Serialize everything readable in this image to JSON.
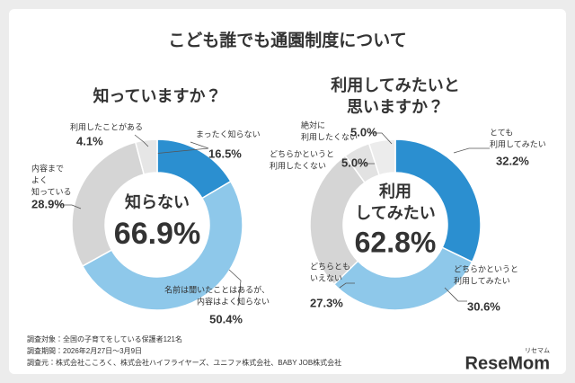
{
  "title": "こども誰でも通園制度について",
  "chart_data": [
    {
      "type": "pie",
      "title": [
        "知っていますか？"
      ],
      "center_label": [
        "知らない"
      ],
      "center_value": "66.9%",
      "categories": [
        [
          "まったく知らない"
        ],
        [
          "名前は聞いたことはあるが、",
          "内容はよく知らない"
        ],
        [
          "内容まで",
          "よく",
          "知っている"
        ],
        [
          "利用したことがある"
        ]
      ],
      "values": [
        16.5,
        50.4,
        28.9,
        4.1
      ],
      "value_labels": [
        "16.5%",
        "50.4%",
        "28.9%",
        "4.1%"
      ],
      "colors": [
        "#2b8fd0",
        "#8ec8ea",
        "#d5d5d5",
        "#e6e6e6"
      ]
    },
    {
      "type": "pie",
      "title": [
        "利用してみたいと",
        "思いますか？"
      ],
      "center_label": [
        "利用",
        "してみたい"
      ],
      "center_value": "62.8%",
      "categories": [
        [
          "とても",
          "利用してみたい"
        ],
        [
          "どちらかというと",
          "利用してみたい"
        ],
        [
          "どちらとも",
          "いえない"
        ],
        [
          "どちらかというと",
          "利用したくない"
        ],
        [
          "絶対に",
          "利用したくない"
        ]
      ],
      "values": [
        32.2,
        30.6,
        27.3,
        5.0,
        5.0
      ],
      "value_labels": [
        "32.2%",
        "30.6%",
        "27.3%",
        "5.0%",
        "5.0%"
      ],
      "colors": [
        "#2b8fd0",
        "#8ec8ea",
        "#d5d5d5",
        "#e2e2e2",
        "#ececec"
      ]
    }
  ],
  "notes": [
    "調査対象：全国の子育てをしている保護者121名",
    "調査期間：2026年2月27日～3月9日",
    "調査元：株式会社こころく、株式会社ハイフライヤーズ、ユニファ株式会社、BABY JOB株式会社"
  ],
  "logo": {
    "name": "ReseMom",
    "kana": "リセマム"
  }
}
